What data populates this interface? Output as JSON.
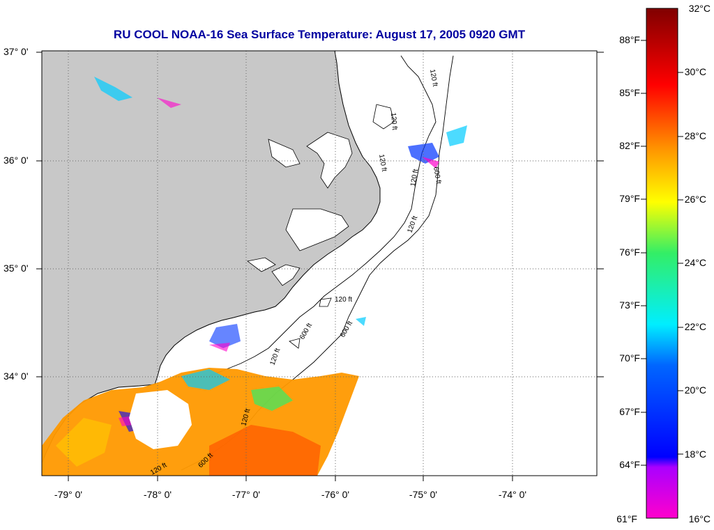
{
  "title": "RU COOL  NOAA-16  Sea Surface Temperature:  August 17, 2005 0920 GMT",
  "lat_labels": [
    "37° 0'",
    "36° 0'",
    "35° 0'",
    "34° 0'"
  ],
  "lon_labels": [
    "-79° 0'",
    "-78° 0'",
    "-77° 0'",
    "-76° 0'",
    "-75° 0'",
    "-74° 0'"
  ],
  "contour_labels": [
    "120 ft",
    "120 ft",
    "600 ft",
    "120 ft",
    "120 ft",
    "120 ft",
    "600 ft",
    "120 ft",
    "120 ft",
    "600 ft",
    "120 ft",
    "600 ft",
    "120 ft"
  ],
  "colorbar": {
    "f_labels": [
      "88°F",
      "85°F",
      "82°F",
      "79°F",
      "76°F",
      "73°F",
      "70°F",
      "67°F",
      "64°F",
      "61°F"
    ],
    "c_labels": [
      "32°C",
      "30°C",
      "28°C",
      "26°C",
      "24°C",
      "22°C",
      "20°C",
      "18°C",
      "16°C"
    ],
    "colors": {
      "top": "#800000",
      "red": "#ff0000",
      "orange": "#ff9900",
      "yellow": "#ffff00",
      "green": "#33ee66",
      "cyan": "#00eeff",
      "blue": "#0000ff",
      "purple": "#aa00ff",
      "magenta": "#ff00cc"
    }
  },
  "colors": {
    "title": "#0000a0",
    "land": "#c8c8c8",
    "sea": "#ffffff"
  }
}
